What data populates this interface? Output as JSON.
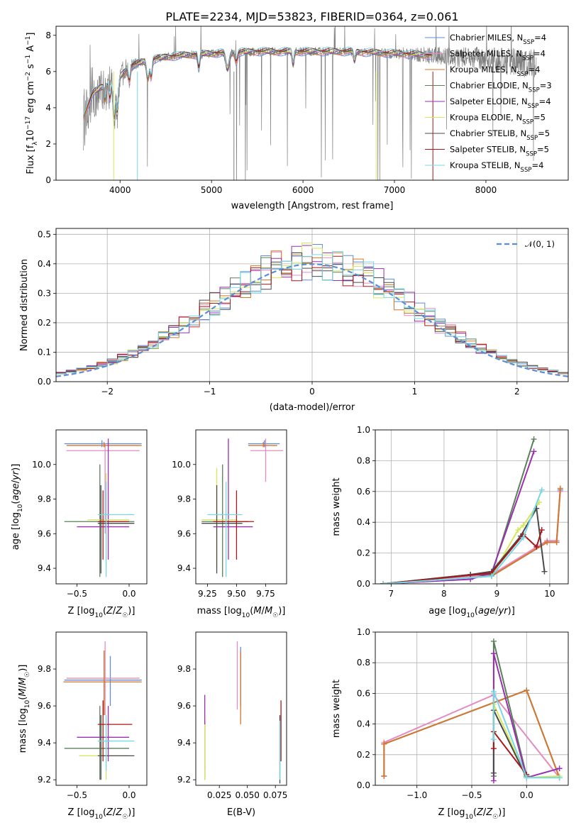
{
  "page": {
    "title": "PLATE=2234, MJD=53823, FIBERID=0364, z=0.061"
  },
  "colors": {
    "Chabrier MILES": "#5b8ed6",
    "Salpeter MILES": "#e48bc1",
    "Kroupa MILES": "#d4772a",
    "Chabrier ELODIE": "#5a7f5a",
    "Salpeter ELODIE": "#9a2fb0",
    "Kroupa ELODIE": "#d8e65a",
    "Chabrier STELIB": "#4a4a4a",
    "Salpeter STELIB": "#a81818",
    "Kroupa STELIB": "#76d7e6",
    "data": "#808080"
  },
  "chart_data": [
    {
      "id": "spectrum",
      "type": "line",
      "title": "PLATE=2234, MJD=53823, FIBERID=0364, z=0.061",
      "xlabel": "wavelength [Angstrom, rest frame]",
      "ylabel": "Flux [f$_\\lambda$10$^{-17}$ erg cm$^{-2}$ s$^{-1}$ A$^{-1}$]",
      "ylabel_parts": [
        "Flux [f",
        "λ",
        "10",
        "−17",
        " erg cm",
        "−2",
        " s",
        "−1",
        " A",
        "−1",
        "]"
      ],
      "xlim": [
        3300,
        8900
      ],
      "ylim": [
        0,
        8.5
      ],
      "xticks": [
        4000,
        5000,
        6000,
        7000,
        8000
      ],
      "yticks": [
        0,
        2,
        4,
        6,
        8
      ],
      "legend_position": "top-right",
      "legend": [
        {
          "label": "Chabrier MILES, N",
          "sub": "SSP",
          "tail": "=4"
        },
        {
          "label": "Salpeter MILES, N",
          "sub": "SSP",
          "tail": "=4"
        },
        {
          "label": "Kroupa MILES, N",
          "sub": "SSP",
          "tail": "=4"
        },
        {
          "label": "Chabrier ELODIE, N",
          "sub": "SSP",
          "tail": "=3"
        },
        {
          "label": "Salpeter ELODIE, N",
          "sub": "SSP",
          "tail": "=4"
        },
        {
          "label": "Kroupa ELODIE, N",
          "sub": "SSP",
          "tail": "=5"
        },
        {
          "label": "Chabrier STELIB, N",
          "sub": "SSP",
          "tail": "=5"
        },
        {
          "label": "Salpeter STELIB, N",
          "sub": "SSP",
          "tail": "=5"
        },
        {
          "label": "Kroupa STELIB, N",
          "sub": "SSP",
          "tail": "=4"
        }
      ],
      "continuum_anchors": [
        [
          3600,
          3.5
        ],
        [
          3700,
          4.8
        ],
        [
          3850,
          5.3
        ],
        [
          3950,
          5.6
        ],
        [
          4000,
          5.7
        ],
        [
          4100,
          6.3
        ],
        [
          4300,
          6.6
        ],
        [
          4500,
          6.8
        ],
        [
          4700,
          6.9
        ],
        [
          5000,
          7.0
        ],
        [
          5500,
          7.1
        ],
        [
          6000,
          7.1
        ],
        [
          6500,
          7.1
        ],
        [
          7000,
          7.0
        ],
        [
          7400,
          6.9
        ],
        [
          8000,
          6.7
        ],
        [
          8500,
          6.4
        ],
        [
          8800,
          6.1
        ]
      ],
      "model_range": [
        3600,
        7420
      ],
      "data_range": [
        3600,
        8550
      ]
    },
    {
      "id": "residuals",
      "type": "bar",
      "xlabel": "(data-model)/error",
      "ylabel": "Normed distribution",
      "xlim": [
        -2.5,
        2.5
      ],
      "ylim": [
        0,
        0.52
      ],
      "xticks": [
        -2,
        -1,
        0,
        1,
        2
      ],
      "yticks": [
        0.0,
        0.1,
        0.2,
        0.3,
        0.4,
        0.5
      ],
      "legend_position": "top-right",
      "legend": [
        {
          "label": "𝒩(0, 1)",
          "style": "dashed"
        }
      ],
      "bin_width": 0.1,
      "reference_curve": "normal(0,1)"
    },
    {
      "id": "age-vs-z",
      "type": "scatter",
      "xlabel": "Z [log10(Z/Z☉)]",
      "ylabel": "age  [log10(age/yr)]",
      "xlim": [
        -0.7,
        0.17
      ],
      "ylim": [
        9.31,
        10.2
      ],
      "xticks": [
        -0.5,
        0.0
      ],
      "yticks": [
        9.4,
        9.6,
        9.8,
        10.0
      ],
      "points": [
        {
          "m": "Chabrier MILES",
          "x": -0.26,
          "xe": [
            -0.62,
            0.12
          ],
          "y": 10.12,
          "ye": [
            10.1,
            10.14
          ]
        },
        {
          "m": "Salpeter MILES",
          "x": -0.23,
          "xe": [
            -0.6,
            0.1
          ],
          "y": 10.08,
          "ye": [
            9.6,
            10.12
          ]
        },
        {
          "m": "Kroupa MILES",
          "x": -0.24,
          "xe": [
            -0.6,
            0.12
          ],
          "y": 10.11,
          "ye": [
            10.1,
            10.13
          ]
        },
        {
          "m": "Chabrier ELODIE",
          "x": -0.28,
          "xe": [
            -0.62,
            0.05
          ],
          "y": 9.67,
          "ye": [
            9.35,
            10.0
          ]
        },
        {
          "m": "Salpeter ELODIE",
          "x": -0.2,
          "xe": [
            -0.5,
            0.0
          ],
          "y": 9.64,
          "ye": [
            9.45,
            10.15
          ]
        },
        {
          "m": "Kroupa ELODIE",
          "x": -0.22,
          "xe": [
            -0.4,
            0.0
          ],
          "y": 9.68,
          "ye": [
            9.4,
            9.95
          ]
        },
        {
          "m": "Chabrier STELIB",
          "x": -0.27,
          "xe": [
            -0.3,
            0.05
          ],
          "y": 9.66,
          "ye": [
            9.37,
            9.88
          ]
        },
        {
          "m": "Salpeter STELIB",
          "x": -0.25,
          "xe": [
            -0.3,
            0.0
          ],
          "y": 9.67,
          "ye": [
            9.45,
            9.85
          ]
        },
        {
          "m": "Kroupa STELIB",
          "x": -0.22,
          "xe": [
            -0.3,
            0.05
          ],
          "y": 9.71,
          "ye": [
            9.35,
            9.9
          ]
        }
      ]
    },
    {
      "id": "age-vs-mass",
      "type": "scatter",
      "xlabel": "mass [log10(M/M☉)]",
      "ylabel": "",
      "xlim": [
        9.15,
        9.93
      ],
      "ylim": [
        9.31,
        10.2
      ],
      "xticks": [
        9.25,
        9.5,
        9.75
      ],
      "yticks": [
        9.4,
        9.6,
        9.8,
        10.0
      ],
      "points": [
        {
          "m": "Chabrier MILES",
          "x": 9.74,
          "xe": [
            9.6,
            9.87
          ],
          "y": 10.12,
          "ye": [
            10.1,
            10.14
          ]
        },
        {
          "m": "Salpeter MILES",
          "x": 9.75,
          "xe": [
            9.62,
            9.9
          ],
          "y": 10.08,
          "ye": [
            9.9,
            10.15
          ]
        },
        {
          "m": "Kroupa MILES",
          "x": 9.73,
          "xe": [
            9.6,
            9.85
          ],
          "y": 10.11,
          "ye": [
            10.1,
            10.13
          ]
        },
        {
          "m": "Chabrier ELODIE",
          "x": 9.38,
          "xe": [
            9.2,
            9.6
          ],
          "y": 9.67,
          "ye": [
            9.35,
            10.0
          ]
        },
        {
          "m": "Salpeter ELODIE",
          "x": 9.43,
          "xe": [
            9.3,
            9.64
          ],
          "y": 9.64,
          "ye": [
            9.45,
            10.15
          ]
        },
        {
          "m": "Kroupa ELODIE",
          "x": 9.33,
          "xe": [
            9.2,
            9.5
          ],
          "y": 9.68,
          "ye": [
            9.4,
            9.98
          ]
        },
        {
          "m": "Chabrier STELIB",
          "x": 9.33,
          "xe": [
            9.2,
            9.55
          ],
          "y": 9.66,
          "ye": [
            9.37,
            9.88
          ]
        },
        {
          "m": "Salpeter STELIB",
          "x": 9.5,
          "xe": [
            9.3,
            9.65
          ],
          "y": 9.67,
          "ye": [
            9.45,
            9.85
          ]
        },
        {
          "m": "Kroupa STELIB",
          "x": 9.41,
          "xe": [
            9.25,
            9.55
          ],
          "y": 9.71,
          "ye": [
            9.35,
            9.9
          ]
        }
      ]
    },
    {
      "id": "weight-vs-age",
      "type": "line",
      "xlabel": "age  [log10(age/yr)]",
      "ylabel": "mass weight",
      "xlim": [
        6.7,
        10.35
      ],
      "ylim": [
        0,
        1.0
      ],
      "xticks": [
        7,
        8,
        9,
        10
      ],
      "yticks": [
        0.0,
        0.2,
        0.4,
        0.6,
        0.8,
        1.0
      ],
      "series": [
        {
          "m": "Chabrier MILES",
          "x": [
            6.85,
            8.9,
            9.95,
            10.13,
            10.2
          ],
          "y": [
            0.0,
            0.05,
            0.27,
            0.27,
            0.61
          ]
        },
        {
          "m": "Salpeter MILES",
          "x": [
            6.85,
            8.9,
            9.95,
            10.13,
            10.2
          ],
          "y": [
            0.0,
            0.06,
            0.28,
            0.28,
            0.6
          ]
        },
        {
          "m": "Kroupa MILES",
          "x": [
            6.85,
            8.9,
            9.95,
            10.13,
            10.2
          ],
          "y": [
            0.0,
            0.05,
            0.27,
            0.27,
            0.62
          ]
        },
        {
          "m": "Chabrier ELODIE",
          "x": [
            6.85,
            8.5,
            8.9,
            9.7
          ],
          "y": [
            0.0,
            0.06,
            0.06,
            0.94
          ]
        },
        {
          "m": "Salpeter ELODIE",
          "x": [
            6.85,
            8.5,
            8.9,
            9.7
          ],
          "y": [
            0.0,
            0.03,
            0.07,
            0.86
          ]
        },
        {
          "m": "Kroupa ELODIE",
          "x": [
            6.85,
            8.9,
            9.4,
            9.5,
            9.8
          ],
          "y": [
            0.0,
            0.05,
            0.35,
            0.38,
            0.53
          ]
        },
        {
          "m": "Chabrier STELIB",
          "x": [
            6.85,
            8.5,
            8.9,
            9.45,
            9.75,
            9.9
          ],
          "y": [
            0.0,
            0.06,
            0.08,
            0.31,
            0.49,
            0.08
          ]
        },
        {
          "m": "Salpeter STELIB",
          "x": [
            6.85,
            8.9,
            9.5,
            9.75,
            9.85
          ],
          "y": [
            0.0,
            0.07,
            0.32,
            0.24,
            0.35
          ]
        },
        {
          "m": "Kroupa STELIB",
          "x": [
            6.85,
            8.9,
            9.5,
            9.85
          ],
          "y": [
            0.0,
            0.05,
            0.3,
            0.61
          ]
        }
      ]
    },
    {
      "id": "mass-vs-z",
      "type": "scatter",
      "xlabel": "Z [log10(Z/Z☉)]",
      "ylabel": "mass [log10(M/M☉)]",
      "xlim": [
        -0.7,
        0.17
      ],
      "ylim": [
        9.17,
        10.0
      ],
      "xticks": [
        -0.5,
        0.0
      ],
      "yticks": [
        9.2,
        9.4,
        9.6,
        9.8
      ],
      "points": [
        {
          "m": "Chabrier MILES",
          "x": -0.18,
          "xe": [
            -0.62,
            0.12
          ],
          "y": 9.74,
          "ye": [
            9.6,
            9.87
          ]
        },
        {
          "m": "Salpeter MILES",
          "x": -0.23,
          "xe": [
            -0.6,
            0.1
          ],
          "y": 9.75,
          "ye": [
            9.55,
            9.95
          ]
        },
        {
          "m": "Kroupa MILES",
          "x": -0.24,
          "xe": [
            -0.63,
            0.12
          ],
          "y": 9.73,
          "ye": [
            9.55,
            9.9
          ]
        },
        {
          "m": "Chabrier ELODIE",
          "x": -0.28,
          "xe": [
            -0.62,
            0.0
          ],
          "y": 9.37,
          "ye": [
            9.2,
            9.6
          ]
        },
        {
          "m": "Salpeter ELODIE",
          "x": -0.2,
          "xe": [
            -0.5,
            0.0
          ],
          "y": 9.43,
          "ye": [
            9.3,
            9.6
          ]
        },
        {
          "m": "Kroupa ELODIE",
          "x": -0.22,
          "xe": [
            -0.48,
            0.0
          ],
          "y": 9.33,
          "ye": [
            9.2,
            9.5
          ]
        },
        {
          "m": "Chabrier STELIB",
          "x": -0.27,
          "xe": [
            -0.3,
            0.05
          ],
          "y": 9.33,
          "ye": [
            9.2,
            9.55
          ]
        },
        {
          "m": "Salpeter STELIB",
          "x": -0.25,
          "xe": [
            -0.3,
            0.03
          ],
          "y": 9.5,
          "ye": [
            9.3,
            9.63
          ]
        },
        {
          "m": "Kroupa STELIB",
          "x": -0.22,
          "xe": [
            -0.3,
            0.05
          ],
          "y": 9.41,
          "ye": [
            9.25,
            9.55
          ]
        }
      ]
    },
    {
      "id": "mass-vs-ebv",
      "type": "scatter",
      "xlabel": "E(B-V)",
      "ylabel": "",
      "xlim": [
        0.004,
        0.085
      ],
      "ylim": [
        9.17,
        10.0
      ],
      "xticks": [
        0.025,
        0.05,
        0.075
      ],
      "yticks": [
        9.2,
        9.4,
        9.6,
        9.8
      ],
      "points": [
        {
          "m": "Chabrier MILES",
          "x": 0.044,
          "y": 9.74,
          "ye": [
            9.6,
            9.92
          ]
        },
        {
          "m": "Salpeter MILES",
          "x": 0.041,
          "y": 9.75,
          "ye": [
            9.58,
            9.95
          ]
        },
        {
          "m": "Kroupa MILES",
          "x": 0.044,
          "y": 9.73,
          "ye": [
            9.5,
            9.9
          ]
        },
        {
          "m": "Chabrier ELODIE",
          "x": 0.012,
          "y": 9.37,
          "ye": [
            9.2,
            9.52
          ]
        },
        {
          "m": "Salpeter ELODIE",
          "x": 0.012,
          "y": 9.43,
          "ye": [
            9.25,
            9.66
          ]
        },
        {
          "m": "Kroupa ELODIE",
          "x": 0.012,
          "y": 9.33,
          "ye": [
            9.2,
            9.5
          ]
        },
        {
          "m": "Chabrier STELIB",
          "x": 0.079,
          "y": 9.33,
          "ye": [
            9.18,
            9.55
          ]
        },
        {
          "m": "Salpeter STELIB",
          "x": 0.08,
          "y": 9.5,
          "ye": [
            9.3,
            9.63
          ]
        },
        {
          "m": "Kroupa STELIB",
          "x": 0.079,
          "y": 9.41,
          "ye": [
            9.2,
            9.52
          ]
        }
      ]
    },
    {
      "id": "weight-vs-z",
      "type": "line",
      "xlabel": "Z [log10(Z/Z☉)]",
      "ylabel": "mass weight",
      "xlim": [
        -1.38,
        0.38
      ],
      "ylim": [
        0,
        1.0
      ],
      "xticks": [
        -1.0,
        -0.5,
        0.0
      ],
      "yticks": [
        0.0,
        0.2,
        0.4,
        0.6,
        0.8,
        1.0
      ],
      "series": [
        {
          "m": "Chabrier MILES",
          "x": [
            -1.3,
            -1.3,
            0.0,
            0.3
          ],
          "y": [
            0.06,
            0.27,
            0.62,
            0.05
          ]
        },
        {
          "m": "Salpeter MILES",
          "x": [
            -1.3,
            -1.3,
            -0.3,
            0.3
          ],
          "y": [
            0.06,
            0.28,
            0.59,
            0.05
          ]
        },
        {
          "m": "Kroupa MILES",
          "x": [
            -1.3,
            -1.3,
            0.0,
            0.3
          ],
          "y": [
            0.06,
            0.27,
            0.62,
            0.05
          ]
        },
        {
          "m": "Chabrier ELODIE",
          "x": [
            -0.3,
            -0.3,
            0.0
          ],
          "y": [
            0.06,
            0.94,
            0.06
          ]
        },
        {
          "m": "Salpeter ELODIE",
          "x": [
            -0.3,
            -0.3,
            0.0,
            0.3
          ],
          "y": [
            0.03,
            0.86,
            0.05,
            0.11
          ]
        },
        {
          "m": "Kroupa ELODIE",
          "x": [
            -0.3,
            -0.3,
            0.0,
            0.3
          ],
          "y": [
            0.35,
            0.53,
            0.05,
            0.06
          ]
        },
        {
          "m": "Chabrier STELIB",
          "x": [
            -0.3,
            -0.3,
            0.0
          ],
          "y": [
            0.08,
            0.49,
            0.05
          ]
        },
        {
          "m": "Salpeter STELIB",
          "x": [
            -0.3,
            -0.3,
            0.0
          ],
          "y": [
            0.24,
            0.35,
            0.07
          ]
        },
        {
          "m": "Kroupa STELIB",
          "x": [
            -0.3,
            -0.3,
            0.0,
            0.3
          ],
          "y": [
            0.3,
            0.61,
            0.05,
            0.05
          ]
        }
      ]
    }
  ]
}
